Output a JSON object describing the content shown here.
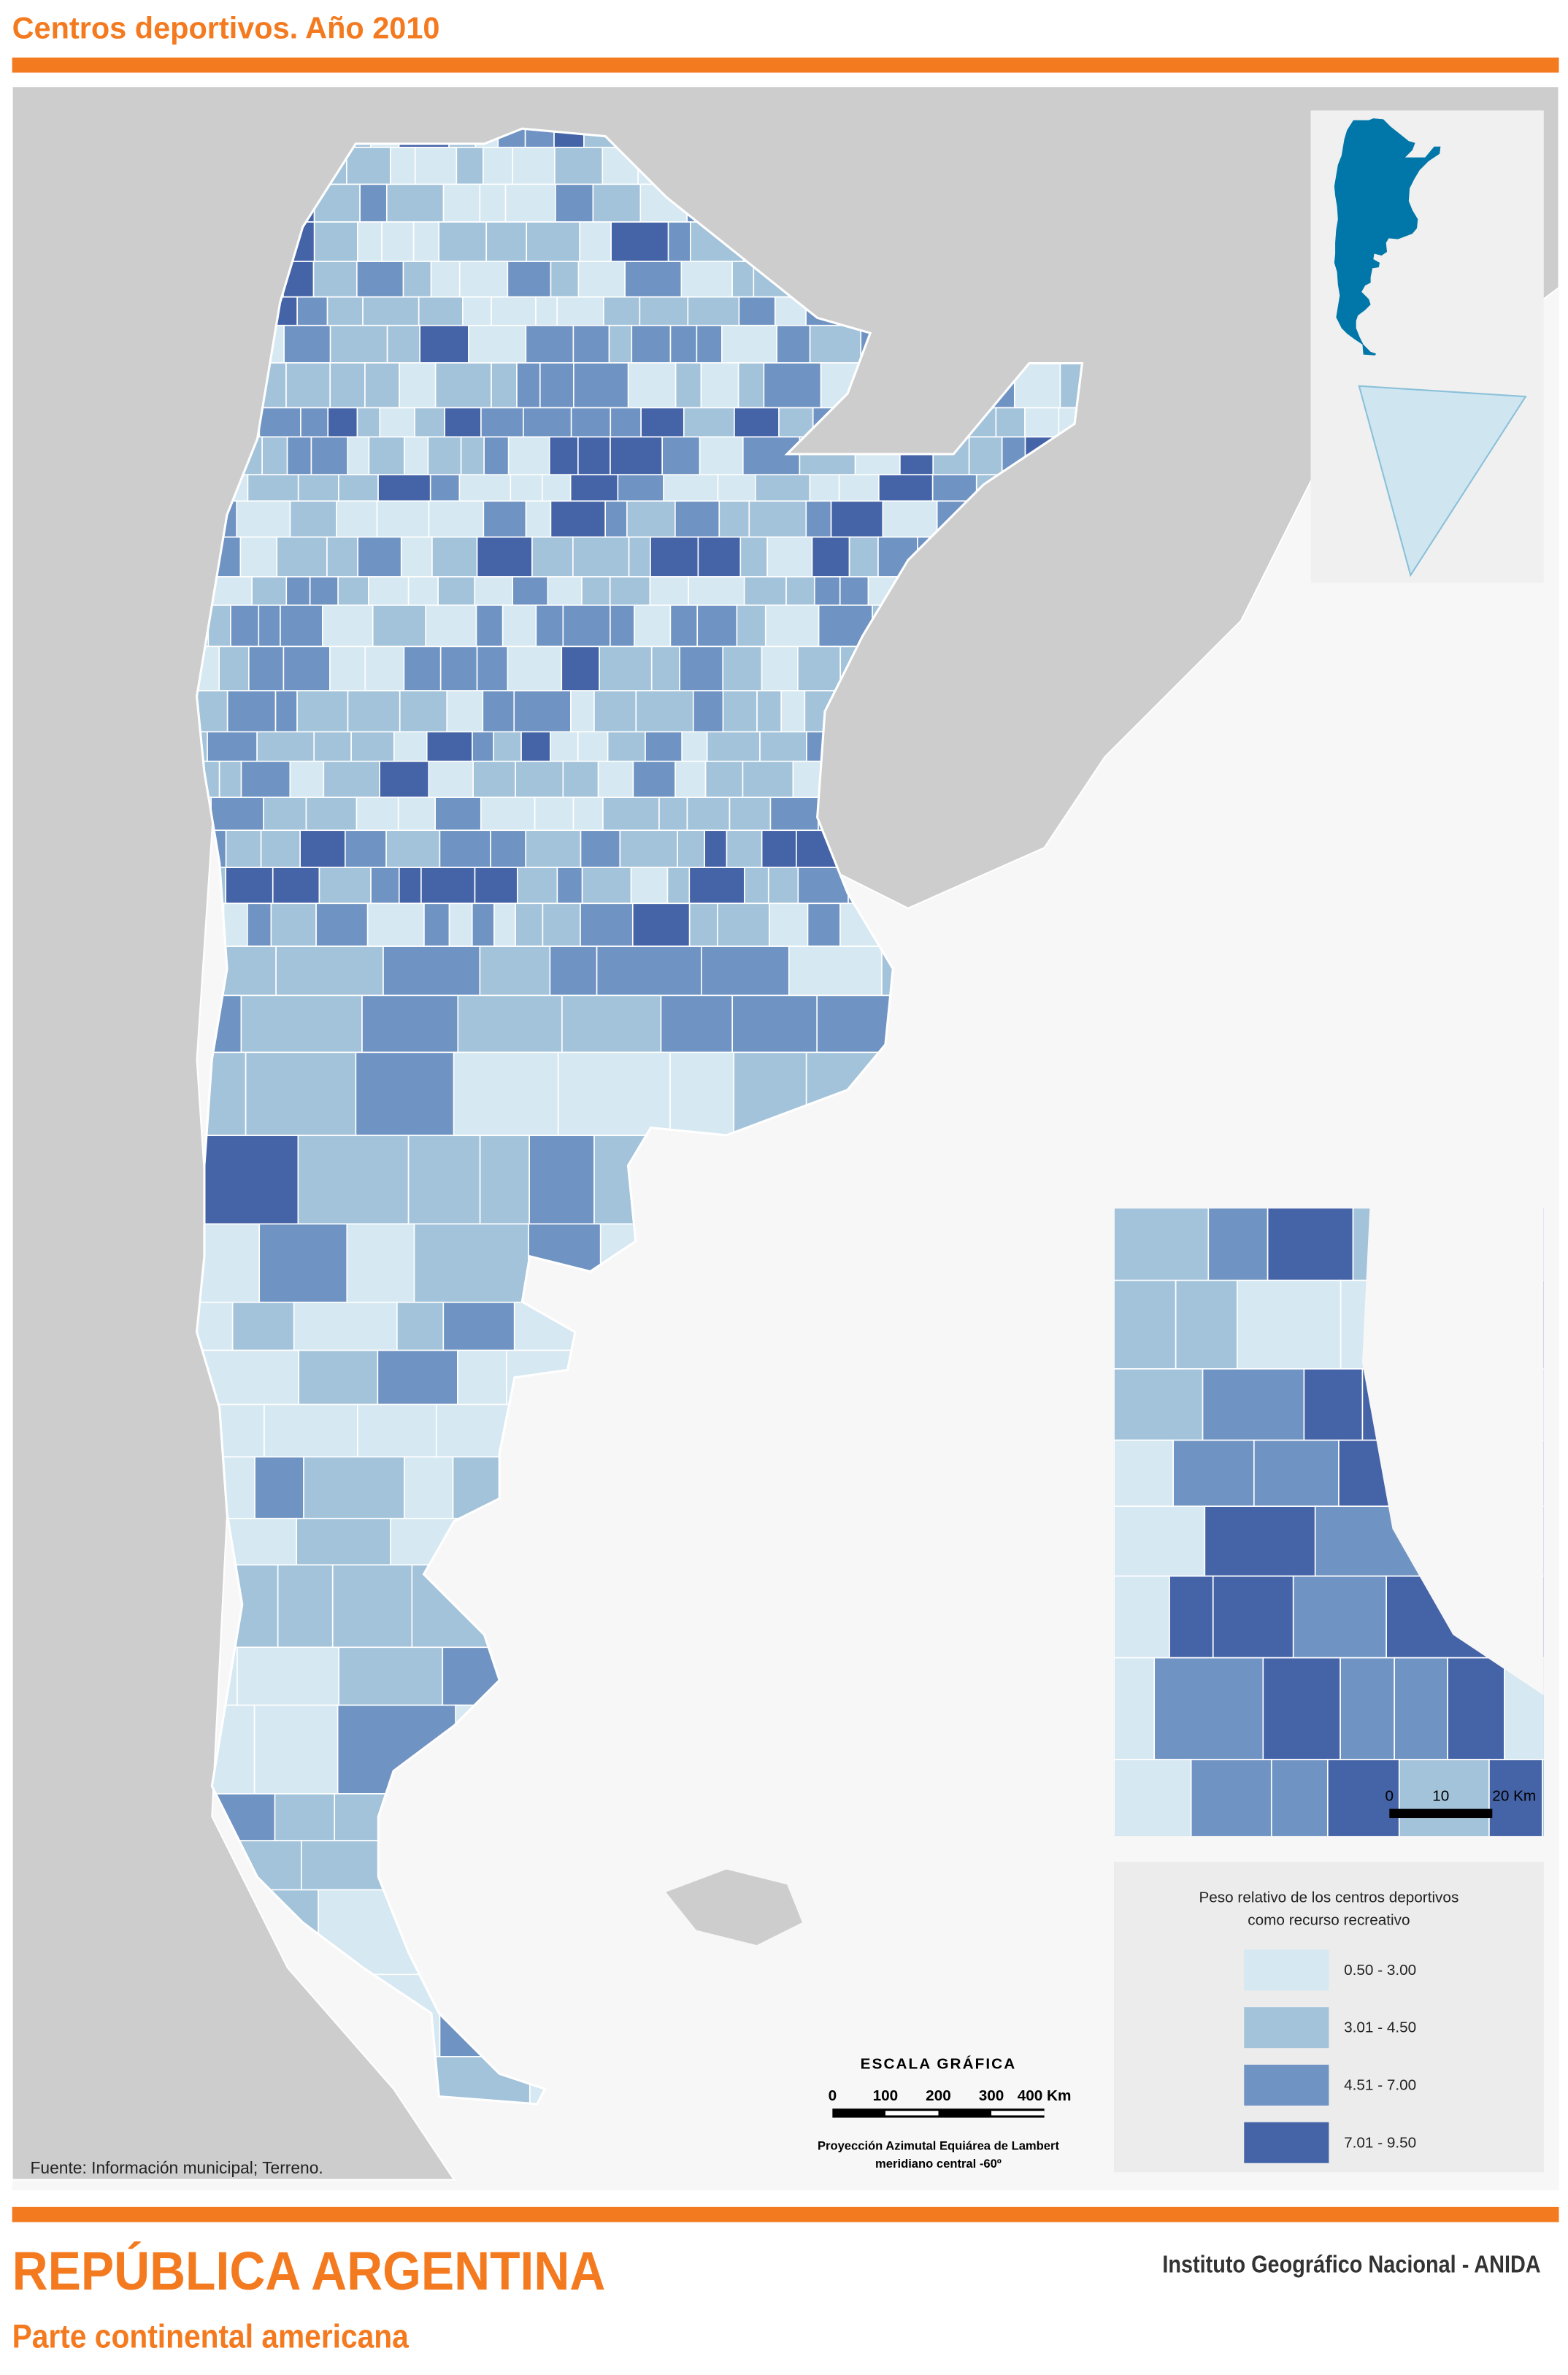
{
  "header": {
    "title": "Centros deportivos. Año 2010"
  },
  "legend": {
    "title": [
      "Peso relativo de los centros deportivos",
      "como recurso recreativo"
    ],
    "items": [
      {
        "label": "0.50 - 3.00",
        "color": "#d6e8f1"
      },
      {
        "label": "3.01 - 4.50",
        "color": "#a3c3da"
      },
      {
        "label": "4.51 - 7.00",
        "color": "#6f93c2"
      },
      {
        "label": "7.01 - 9.50",
        "color": "#4563a7"
      }
    ]
  },
  "scale": {
    "title": "ESCALA GRÁFICA",
    "ticks": [
      "0",
      "100",
      "200",
      "300",
      "400 Km"
    ],
    "projection": [
      "Proyección Azimutal Equiárea de Lambert",
      "meridiano central -60º"
    ]
  },
  "inset_scale": {
    "ticks": [
      "0",
      "10",
      "20 Km"
    ]
  },
  "source": "Fuente: Información municipal; Terreno.",
  "footer": {
    "title": "REPÚBLICA ARGENTINA",
    "subtitle": "Parte continental americana",
    "publisher": "Instituto Geográfico Nacional - ANIDA"
  }
}
